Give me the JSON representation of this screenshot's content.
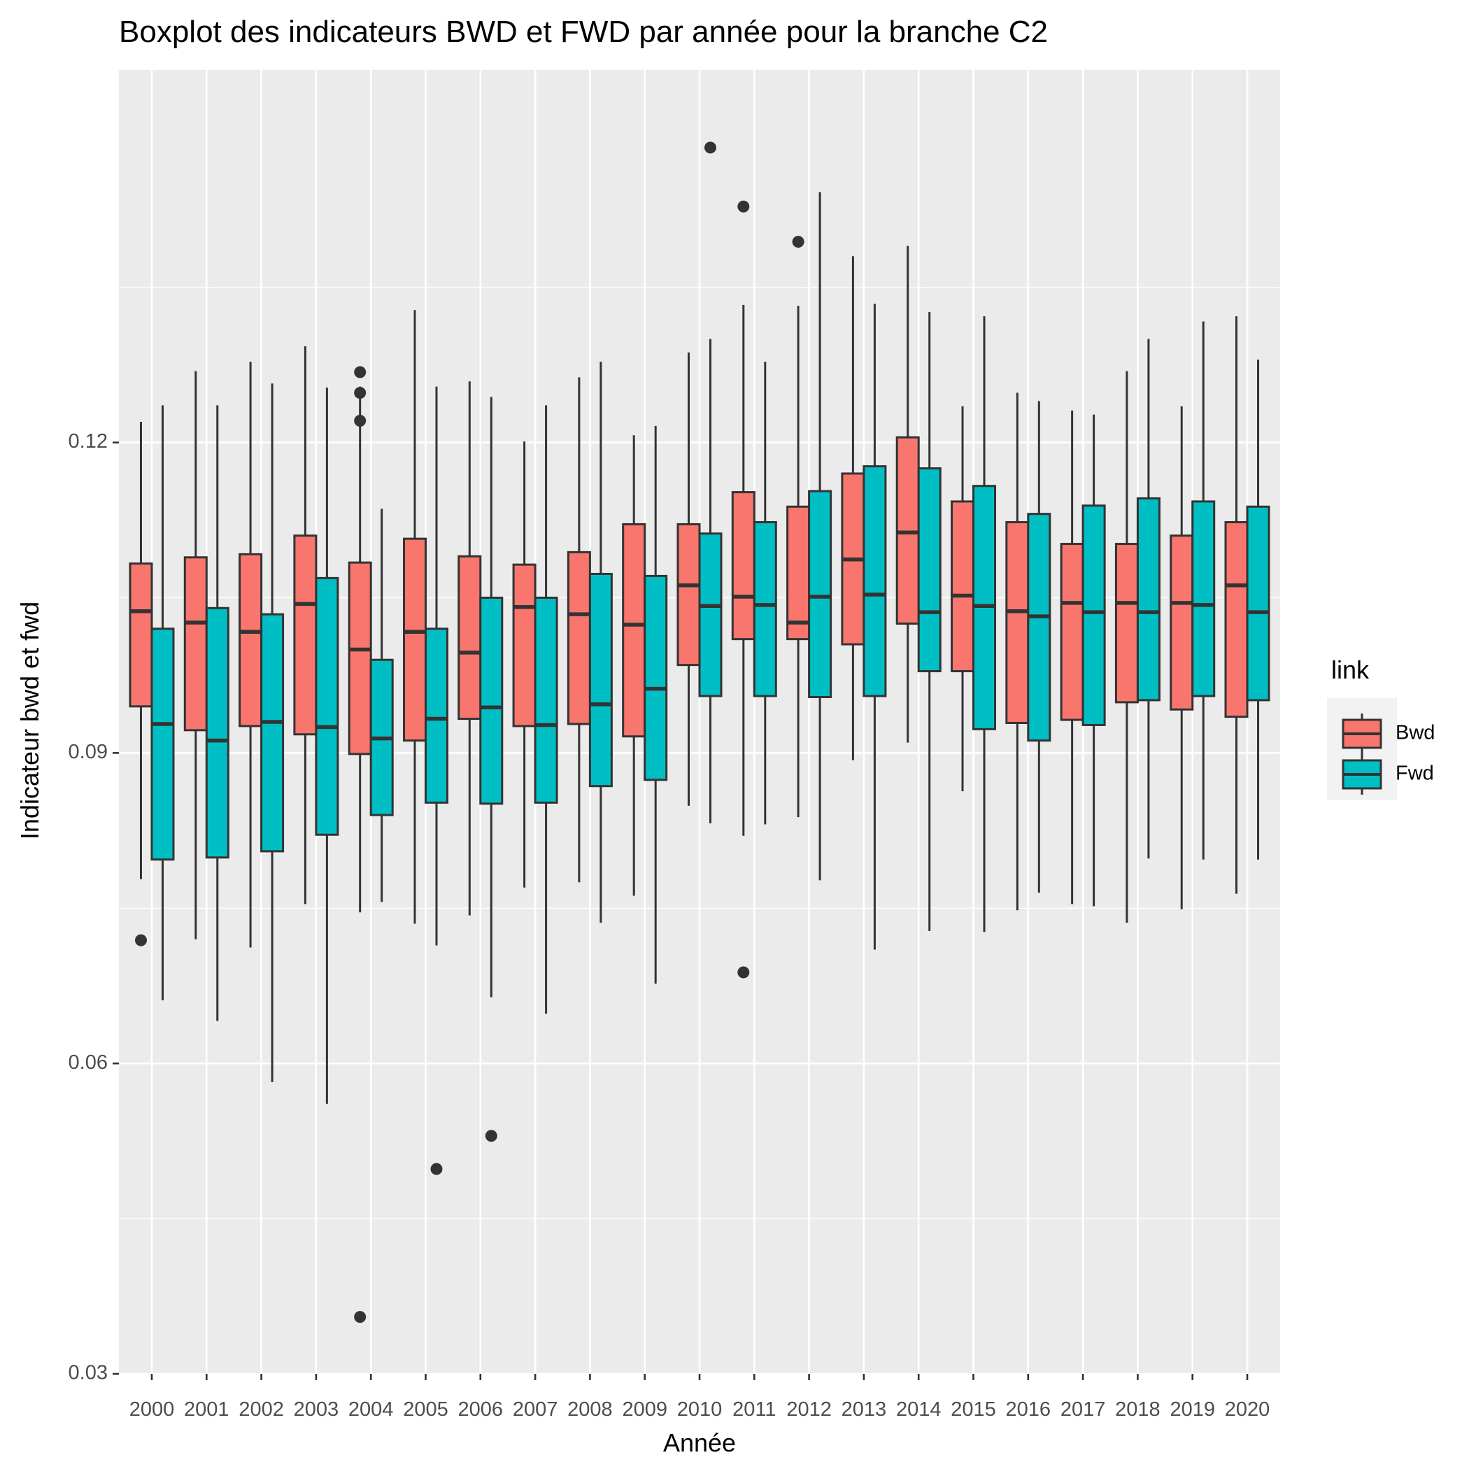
{
  "chart_data": {
    "type": "boxplot",
    "title": "Boxplot des indicateurs BWD et FWD par année pour la branche C2",
    "xlabel": "Année",
    "ylabel": "Indicateur bwd et fwd",
    "ylim": [
      0.03,
      0.156
    ],
    "yticks": [
      "0.03",
      "0.06",
      "0.09",
      "0.12"
    ],
    "grid": true,
    "legend": {
      "title": "link",
      "position": "right",
      "entries": [
        {
          "label": "Bwd",
          "color": "#F8766D"
        },
        {
          "label": "Fwd",
          "color": "#00BFC4"
        }
      ]
    },
    "colors": {
      "panel": "#EBEBEB",
      "grid": "#FFFFFF",
      "box_line": "#333333"
    },
    "categories": [
      "2000",
      "2001",
      "2002",
      "2003",
      "2004",
      "2005",
      "2006",
      "2007",
      "2008",
      "2009",
      "2010",
      "2011",
      "2012",
      "2013",
      "2014",
      "2015",
      "2016",
      "2017",
      "2018",
      "2019",
      "2020"
    ],
    "series": [
      {
        "name": "Bwd",
        "color": "#F8766D",
        "boxes": [
          {
            "lower": 0.0778,
            "q1": 0.0945,
            "median": 0.1037,
            "q3": 0.1083,
            "upper": 0.122,
            "outliers": [
              0.0719
            ]
          },
          {
            "lower": 0.072,
            "q1": 0.0922,
            "median": 0.1026,
            "q3": 0.1089,
            "upper": 0.1269,
            "outliers": []
          },
          {
            "lower": 0.0712,
            "q1": 0.0926,
            "median": 0.1017,
            "q3": 0.1092,
            "upper": 0.1278,
            "outliers": []
          },
          {
            "lower": 0.0754,
            "q1": 0.0918,
            "median": 0.1044,
            "q3": 0.111,
            "upper": 0.1293,
            "outliers": []
          },
          {
            "lower": 0.0746,
            "q1": 0.0899,
            "median": 0.1,
            "q3": 0.1084,
            "upper": 0.1254,
            "outliers": [
              0.1268,
              0.1248,
              0.1221,
              0.0355
            ]
          },
          {
            "lower": 0.0735,
            "q1": 0.0912,
            "median": 0.1017,
            "q3": 0.1107,
            "upper": 0.1328,
            "outliers": []
          },
          {
            "lower": 0.0743,
            "q1": 0.0933,
            "median": 0.0997,
            "q3": 0.109,
            "upper": 0.1259,
            "outliers": []
          },
          {
            "lower": 0.077,
            "q1": 0.0926,
            "median": 0.1041,
            "q3": 0.1082,
            "upper": 0.1201,
            "outliers": []
          },
          {
            "lower": 0.0775,
            "q1": 0.0928,
            "median": 0.1034,
            "q3": 0.1094,
            "upper": 0.1263,
            "outliers": []
          },
          {
            "lower": 0.0762,
            "q1": 0.0916,
            "median": 0.1024,
            "q3": 0.1121,
            "upper": 0.1207,
            "outliers": []
          },
          {
            "lower": 0.0849,
            "q1": 0.0985,
            "median": 0.1062,
            "q3": 0.1121,
            "upper": 0.1287,
            "outliers": []
          },
          {
            "lower": 0.082,
            "q1": 0.101,
            "median": 0.1051,
            "q3": 0.1152,
            "upper": 0.1333,
            "outliers": [
              0.1428,
              0.0688
            ]
          },
          {
            "lower": 0.0838,
            "q1": 0.101,
            "median": 0.1026,
            "q3": 0.1138,
            "upper": 0.1332,
            "outliers": [
              0.1394
            ]
          },
          {
            "lower": 0.0893,
            "q1": 0.1005,
            "median": 0.1087,
            "q3": 0.117,
            "upper": 0.138,
            "outliers": []
          },
          {
            "lower": 0.091,
            "q1": 0.1025,
            "median": 0.1113,
            "q3": 0.1205,
            "upper": 0.139,
            "outliers": []
          },
          {
            "lower": 0.0863,
            "q1": 0.0979,
            "median": 0.1052,
            "q3": 0.1143,
            "upper": 0.1235,
            "outliers": []
          },
          {
            "lower": 0.0748,
            "q1": 0.0929,
            "median": 0.1037,
            "q3": 0.1123,
            "upper": 0.1248,
            "outliers": []
          },
          {
            "lower": 0.0754,
            "q1": 0.0932,
            "median": 0.1045,
            "q3": 0.1102,
            "upper": 0.1231,
            "outliers": []
          },
          {
            "lower": 0.0736,
            "q1": 0.0949,
            "median": 0.1045,
            "q3": 0.1102,
            "upper": 0.1269,
            "outliers": []
          },
          {
            "lower": 0.0749,
            "q1": 0.0942,
            "median": 0.1045,
            "q3": 0.111,
            "upper": 0.1235,
            "outliers": []
          },
          {
            "lower": 0.0764,
            "q1": 0.0935,
            "median": 0.1062,
            "q3": 0.1123,
            "upper": 0.1322,
            "outliers": []
          }
        ]
      },
      {
        "name": "Fwd",
        "color": "#00BFC4",
        "boxes": [
          {
            "lower": 0.0661,
            "q1": 0.0797,
            "median": 0.0928,
            "q3": 0.102,
            "upper": 0.1236,
            "outliers": []
          },
          {
            "lower": 0.0641,
            "q1": 0.0799,
            "median": 0.0912,
            "q3": 0.104,
            "upper": 0.1236,
            "outliers": []
          },
          {
            "lower": 0.0582,
            "q1": 0.0805,
            "median": 0.093,
            "q3": 0.1034,
            "upper": 0.1257,
            "outliers": []
          },
          {
            "lower": 0.0561,
            "q1": 0.0821,
            "median": 0.0925,
            "q3": 0.1069,
            "upper": 0.1253,
            "outliers": []
          },
          {
            "lower": 0.0756,
            "q1": 0.084,
            "median": 0.0914,
            "q3": 0.099,
            "upper": 0.1136,
            "outliers": []
          },
          {
            "lower": 0.0714,
            "q1": 0.0852,
            "median": 0.0933,
            "q3": 0.102,
            "upper": 0.1254,
            "outliers": [
              0.0498
            ]
          },
          {
            "lower": 0.0664,
            "q1": 0.0851,
            "median": 0.0944,
            "q3": 0.105,
            "upper": 0.1244,
            "outliers": [
              0.053
            ]
          },
          {
            "lower": 0.0648,
            "q1": 0.0852,
            "median": 0.0927,
            "q3": 0.105,
            "upper": 0.1236,
            "outliers": []
          },
          {
            "lower": 0.0736,
            "q1": 0.0868,
            "median": 0.0947,
            "q3": 0.1073,
            "upper": 0.1278,
            "outliers": []
          },
          {
            "lower": 0.0677,
            "q1": 0.0874,
            "median": 0.0962,
            "q3": 0.1071,
            "upper": 0.1216,
            "outliers": []
          },
          {
            "lower": 0.0832,
            "q1": 0.0955,
            "median": 0.1042,
            "q3": 0.1112,
            "upper": 0.13,
            "outliers": [
              0.1485
            ]
          },
          {
            "lower": 0.0831,
            "q1": 0.0955,
            "median": 0.1043,
            "q3": 0.1123,
            "upper": 0.1278,
            "outliers": []
          },
          {
            "lower": 0.0777,
            "q1": 0.0954,
            "median": 0.1051,
            "q3": 0.1153,
            "upper": 0.1442,
            "outliers": []
          },
          {
            "lower": 0.071,
            "q1": 0.0955,
            "median": 0.1053,
            "q3": 0.1177,
            "upper": 0.1334,
            "outliers": []
          },
          {
            "lower": 0.0728,
            "q1": 0.0979,
            "median": 0.1036,
            "q3": 0.1175,
            "upper": 0.1326,
            "outliers": []
          },
          {
            "lower": 0.0727,
            "q1": 0.0923,
            "median": 0.1042,
            "q3": 0.1158,
            "upper": 0.1322,
            "outliers": []
          },
          {
            "lower": 0.0765,
            "q1": 0.0912,
            "median": 0.1032,
            "q3": 0.1131,
            "upper": 0.124,
            "outliers": []
          },
          {
            "lower": 0.0752,
            "q1": 0.0927,
            "median": 0.1036,
            "q3": 0.1139,
            "upper": 0.1227,
            "outliers": []
          },
          {
            "lower": 0.0798,
            "q1": 0.0951,
            "median": 0.1036,
            "q3": 0.1146,
            "upper": 0.13,
            "outliers": []
          },
          {
            "lower": 0.0797,
            "q1": 0.0955,
            "median": 0.1043,
            "q3": 0.1143,
            "upper": 0.1317,
            "outliers": []
          },
          {
            "lower": 0.0797,
            "q1": 0.0951,
            "median": 0.1036,
            "q3": 0.1138,
            "upper": 0.128,
            "outliers": []
          }
        ]
      }
    ]
  }
}
